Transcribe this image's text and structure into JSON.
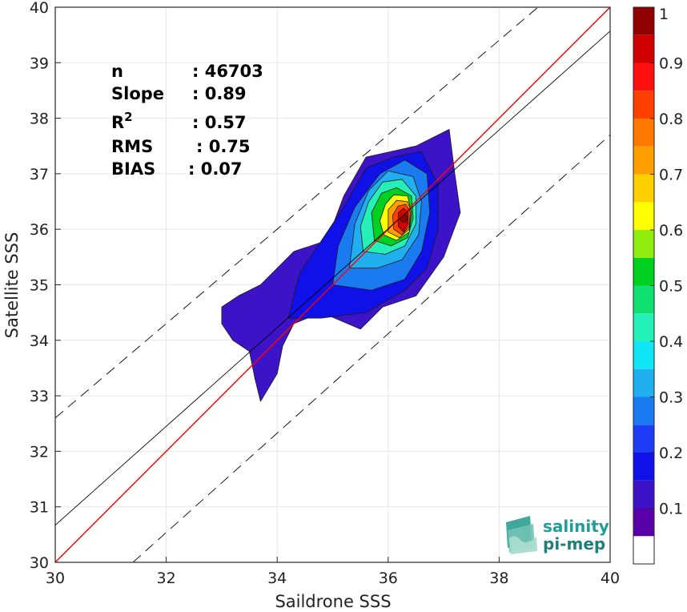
{
  "chart_data": {
    "type": "contour-density",
    "xlabel": "Saildrone SSS",
    "ylabel": "Satellite SSS",
    "xlim": [
      30,
      40
    ],
    "ylim": [
      30,
      40
    ],
    "xticks": [
      30,
      32,
      34,
      36,
      38,
      40
    ],
    "yticks": [
      30,
      31,
      32,
      33,
      34,
      35,
      36,
      37,
      38,
      39,
      40
    ],
    "grid": true,
    "stats": [
      {
        "label": "n",
        "value": ": 46703"
      },
      {
        "label": "Slope",
        "value": ": 0.89"
      },
      {
        "label": "R",
        "sup": "2",
        "value": ": 0.57"
      },
      {
        "label": "RMS",
        "value": ": 0.75"
      },
      {
        "label": "BIAS",
        "value": ": 0.07"
      }
    ],
    "lines": [
      {
        "name": "one-to-one",
        "color": "#ff0000",
        "dash": false,
        "points": [
          [
            30,
            30
          ],
          [
            40,
            40
          ]
        ]
      },
      {
        "name": "regression",
        "color": "#000000",
        "dash": false,
        "points": [
          [
            30,
            30.67
          ],
          [
            40,
            39.57
          ]
        ]
      },
      {
        "name": "upper-bound",
        "color": "#000000",
        "dash": true,
        "points": [
          [
            30,
            32.6
          ],
          [
            38.7,
            40
          ]
        ]
      },
      {
        "name": "lower-bound",
        "color": "#000000",
        "dash": true,
        "points": [
          [
            31.4,
            30
          ],
          [
            40,
            37.7
          ]
        ]
      }
    ],
    "colorbar": {
      "range": [
        0,
        1
      ],
      "ticks": [
        "0.1",
        "0.2",
        "0.3",
        "0.4",
        "0.5",
        "0.6",
        "0.7",
        "0.8",
        "0.9",
        "1"
      ],
      "tick_values": [
        0.1,
        0.2,
        0.3,
        0.4,
        0.5,
        0.6,
        0.7,
        0.8,
        0.9,
        1.0
      ],
      "levels": [
        {
          "from": 0.0,
          "to": 0.05,
          "color": "#ffffff"
        },
        {
          "from": 0.05,
          "to": 0.1,
          "color": "#5a00a8"
        },
        {
          "from": 0.1,
          "to": 0.15,
          "color": "#3d13c8"
        },
        {
          "from": 0.15,
          "to": 0.2,
          "color": "#1010e8"
        },
        {
          "from": 0.2,
          "to": 0.25,
          "color": "#1e3cf5"
        },
        {
          "from": 0.25,
          "to": 0.3,
          "color": "#1a7af0"
        },
        {
          "from": 0.3,
          "to": 0.35,
          "color": "#20b0f0"
        },
        {
          "from": 0.35,
          "to": 0.4,
          "color": "#10e6f5"
        },
        {
          "from": 0.4,
          "to": 0.45,
          "color": "#25f0b8"
        },
        {
          "from": 0.45,
          "to": 0.5,
          "color": "#10e070"
        },
        {
          "from": 0.5,
          "to": 0.55,
          "color": "#00d020"
        },
        {
          "from": 0.55,
          "to": 0.6,
          "color": "#90ee10"
        },
        {
          "from": 0.6,
          "to": 0.65,
          "color": "#ffff00"
        },
        {
          "from": 0.65,
          "to": 0.7,
          "color": "#ffd000"
        },
        {
          "from": 0.7,
          "to": 0.75,
          "color": "#ffa000"
        },
        {
          "from": 0.75,
          "to": 0.8,
          "color": "#ff7800"
        },
        {
          "from": 0.8,
          "to": 0.85,
          "color": "#ff4000"
        },
        {
          "from": 0.85,
          "to": 0.9,
          "color": "#ff1010"
        },
        {
          "from": 0.9,
          "to": 0.95,
          "color": "#d00000"
        },
        {
          "from": 0.95,
          "to": 1.0,
          "color": "#900000"
        }
      ]
    },
    "density_peak": {
      "x": 36.28,
      "y": 36.2
    },
    "density_contours": [
      {
        "level": 0.05,
        "color": "#3d13c8",
        "points": [
          [
            33.0,
            34.3
          ],
          [
            33.2,
            34.0
          ],
          [
            33.5,
            33.8
          ],
          [
            33.6,
            33.3
          ],
          [
            33.7,
            32.9
          ],
          [
            34.0,
            33.4
          ],
          [
            34.1,
            33.9
          ],
          [
            34.3,
            34.3
          ],
          [
            34.8,
            34.5
          ],
          [
            35.5,
            34.2
          ],
          [
            35.9,
            34.6
          ],
          [
            36.5,
            34.8
          ],
          [
            37.0,
            35.5
          ],
          [
            37.3,
            36.3
          ],
          [
            37.2,
            37.0
          ],
          [
            37.1,
            37.8
          ],
          [
            36.5,
            37.5
          ],
          [
            35.6,
            37.3
          ],
          [
            35.2,
            36.6
          ],
          [
            34.9,
            35.8
          ],
          [
            34.3,
            35.6
          ],
          [
            33.7,
            35.0
          ],
          [
            33.3,
            34.8
          ],
          [
            33.0,
            34.6
          ]
        ]
      },
      {
        "level": 0.15,
        "color": "#1010e8",
        "points": [
          [
            34.2,
            34.4
          ],
          [
            34.8,
            34.4
          ],
          [
            35.6,
            34.5
          ],
          [
            36.3,
            34.9
          ],
          [
            36.7,
            35.3
          ],
          [
            36.9,
            36.0
          ],
          [
            36.9,
            36.8
          ],
          [
            36.6,
            37.4
          ],
          [
            36.1,
            37.3
          ],
          [
            35.6,
            37.1
          ],
          [
            35.2,
            36.4
          ],
          [
            34.8,
            35.8
          ],
          [
            34.4,
            35.2
          ]
        ]
      },
      {
        "level": 0.25,
        "color": "#1a7af0",
        "points": [
          [
            35.0,
            35.0
          ],
          [
            35.7,
            34.9
          ],
          [
            36.3,
            35.1
          ],
          [
            36.6,
            35.6
          ],
          [
            36.75,
            36.3
          ],
          [
            36.7,
            37.0
          ],
          [
            36.3,
            37.25
          ],
          [
            35.85,
            37.0
          ],
          [
            35.4,
            36.4
          ],
          [
            35.1,
            35.7
          ]
        ]
      },
      {
        "level": 0.35,
        "color": "#20b0f0",
        "points": [
          [
            35.3,
            35.3
          ],
          [
            35.8,
            35.3
          ],
          [
            36.25,
            35.45
          ],
          [
            36.55,
            35.9
          ],
          [
            36.6,
            36.5
          ],
          [
            36.45,
            36.95
          ],
          [
            36.0,
            37.05
          ],
          [
            35.65,
            36.7
          ],
          [
            35.4,
            36.1
          ]
        ]
      },
      {
        "level": 0.45,
        "color": "#25f0b8",
        "points": [
          [
            35.55,
            35.6
          ],
          [
            35.95,
            35.55
          ],
          [
            36.3,
            35.7
          ],
          [
            36.5,
            36.1
          ],
          [
            36.5,
            36.6
          ],
          [
            36.25,
            36.9
          ],
          [
            35.9,
            36.85
          ],
          [
            35.65,
            36.5
          ],
          [
            35.5,
            36.05
          ]
        ]
      },
      {
        "level": 0.55,
        "color": "#00d020",
        "points": [
          [
            35.75,
            35.8
          ],
          [
            36.05,
            35.7
          ],
          [
            36.35,
            35.85
          ],
          [
            36.45,
            36.2
          ],
          [
            36.42,
            36.6
          ],
          [
            36.15,
            36.75
          ],
          [
            35.88,
            36.65
          ],
          [
            35.7,
            36.3
          ]
        ]
      },
      {
        "level": 0.65,
        "color": "#ffff00",
        "points": [
          [
            35.92,
            35.9
          ],
          [
            36.15,
            35.8
          ],
          [
            36.38,
            35.95
          ],
          [
            36.42,
            36.3
          ],
          [
            36.35,
            36.6
          ],
          [
            36.1,
            36.62
          ],
          [
            35.95,
            36.45
          ],
          [
            35.85,
            36.15
          ]
        ]
      },
      {
        "level": 0.75,
        "color": "#ffa000",
        "points": [
          [
            36.0,
            35.95
          ],
          [
            36.2,
            35.85
          ],
          [
            36.38,
            36.0
          ],
          [
            36.42,
            36.3
          ],
          [
            36.35,
            36.5
          ],
          [
            36.15,
            36.52
          ],
          [
            36.0,
            36.35
          ]
        ]
      },
      {
        "level": 0.85,
        "color": "#ff4000",
        "points": [
          [
            36.1,
            36.0
          ],
          [
            36.25,
            35.9
          ],
          [
            36.38,
            36.05
          ],
          [
            36.4,
            36.3
          ],
          [
            36.32,
            36.45
          ],
          [
            36.18,
            36.42
          ],
          [
            36.08,
            36.25
          ]
        ]
      },
      {
        "level": 0.95,
        "color": "#d00000",
        "points": [
          [
            36.18,
            36.05
          ],
          [
            36.28,
            35.95
          ],
          [
            36.36,
            36.1
          ],
          [
            36.36,
            36.3
          ],
          [
            36.28,
            36.38
          ],
          [
            36.18,
            36.3
          ]
        ]
      }
    ]
  },
  "logo": {
    "line1": "salinity",
    "line2": "pi-mep"
  }
}
